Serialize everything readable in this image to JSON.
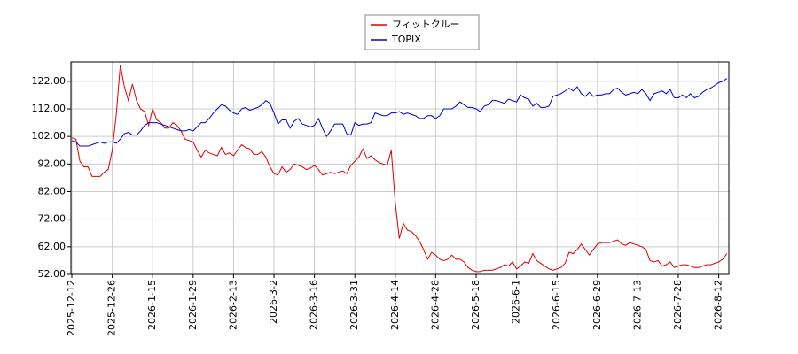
{
  "chart_data": {
    "type": "line",
    "categories": [
      "2025-12-12",
      null,
      null,
      null,
      null,
      null,
      null,
      null,
      null,
      null,
      "2025-12-26",
      null,
      null,
      null,
      null,
      null,
      null,
      null,
      null,
      null,
      "2026-1-15",
      null,
      null,
      null,
      null,
      null,
      null,
      null,
      null,
      null,
      "2026-1-29",
      null,
      null,
      null,
      null,
      null,
      null,
      null,
      null,
      null,
      "2026-2-13",
      null,
      null,
      null,
      null,
      null,
      null,
      null,
      null,
      null,
      "2026-3-2",
      null,
      null,
      null,
      null,
      null,
      null,
      null,
      null,
      null,
      "2026-3-16",
      null,
      null,
      null,
      null,
      null,
      null,
      null,
      null,
      null,
      "2026-3-31",
      null,
      null,
      null,
      null,
      null,
      null,
      null,
      null,
      null,
      "2026-4-14",
      null,
      null,
      null,
      null,
      null,
      null,
      null,
      null,
      null,
      "2026-4-28",
      null,
      null,
      null,
      null,
      null,
      null,
      null,
      null,
      null,
      "2026-5-18",
      null,
      null,
      null,
      null,
      null,
      null,
      null,
      null,
      null,
      "2026-6-1",
      null,
      null,
      null,
      null,
      null,
      null,
      null,
      null,
      null,
      "2026-6-15",
      null,
      null,
      null,
      null,
      null,
      null,
      null,
      null,
      null,
      "2026-6-29",
      null,
      null,
      null,
      null,
      null,
      null,
      null,
      null,
      null,
      "2026-7-13",
      null,
      null,
      null,
      null,
      null,
      null,
      null,
      null,
      null,
      "2026-7-28",
      null,
      null,
      null,
      null,
      null,
      null,
      null,
      null,
      null,
      "2026-8-12",
      null,
      null
    ],
    "series": [
      {
        "name": "フィットクルー",
        "color": "#dd0000",
        "values": [
          101.5,
          101,
          93,
          91,
          91,
          87.5,
          87.5,
          87.5,
          89,
          90,
          97,
          110,
          128,
          120,
          115,
          121,
          115,
          112,
          111,
          106,
          112,
          108,
          107,
          105,
          105,
          107,
          106,
          104,
          101,
          100.5,
          100,
          97,
          94.5,
          97,
          96,
          95.5,
          95,
          98,
          95.5,
          96,
          95,
          97,
          99,
          98,
          97.5,
          95.5,
          95.5,
          96.5,
          94.5,
          91,
          88.5,
          88,
          91,
          89,
          90,
          92,
          91.5,
          91,
          90,
          90.5,
          91.5,
          90,
          88,
          88.5,
          89,
          88.5,
          89,
          89.5,
          88.5,
          91.5,
          93,
          94.5,
          97.5,
          94,
          95,
          93.5,
          92.5,
          92,
          91.5,
          97,
          78,
          65,
          70.5,
          68,
          67.5,
          66,
          64,
          61,
          57.5,
          60,
          59,
          57.5,
          57,
          57.5,
          59,
          57.5,
          57.5,
          56.5,
          54.5,
          53.5,
          53,
          53,
          53.5,
          53.5,
          53.5,
          54,
          54.5,
          55.5,
          55,
          56.5,
          54,
          55,
          56.5,
          56,
          59.5,
          57,
          56,
          55,
          54,
          53.5,
          54,
          54.5,
          56,
          60,
          59.5,
          61,
          63,
          61,
          59,
          61,
          63,
          63.5,
          63.5,
          63.5,
          64,
          64.5,
          63,
          62.5,
          63.5,
          63,
          62.5,
          62,
          61,
          57,
          56.5,
          57,
          55,
          55.5,
          56.5,
          54.5,
          55,
          55.5,
          55.5,
          55,
          54.5,
          54.5,
          55,
          55.5,
          55.5,
          56,
          56.5,
          57.5,
          59.5
        ]
      },
      {
        "name": "TOPIX",
        "color": "#0000cc",
        "values": [
          100.5,
          100,
          98.5,
          98.5,
          98.5,
          99,
          99.5,
          100,
          99.5,
          100,
          100,
          99.5,
          101,
          103,
          103.5,
          102.5,
          102.5,
          104,
          106,
          107,
          107,
          107,
          106.5,
          106,
          105.5,
          105,
          104.5,
          104,
          104,
          104.5,
          104,
          105.5,
          107,
          107,
          108.5,
          110.5,
          112,
          113.5,
          113,
          111.5,
          110.5,
          110,
          112,
          112.5,
          111.5,
          112,
          112.5,
          113.5,
          115,
          114,
          110.5,
          106.5,
          108,
          108,
          105,
          107.5,
          108.5,
          106.5,
          106,
          105.5,
          106,
          108.5,
          105,
          102,
          104,
          106.5,
          106.5,
          106.5,
          103,
          102.5,
          107,
          106,
          106.5,
          106.5,
          107,
          110.5,
          110,
          109.5,
          109.5,
          110.5,
          110.5,
          111,
          110,
          110.5,
          110,
          109.5,
          108.5,
          108.5,
          109.5,
          109.5,
          108.5,
          109.5,
          112,
          112,
          112,
          113,
          114.5,
          113.5,
          112.5,
          112.5,
          112,
          111,
          113,
          113.5,
          115,
          115,
          114.5,
          114,
          115.5,
          115,
          114.5,
          117,
          116,
          115.5,
          113,
          114,
          112.5,
          112.5,
          113,
          116.5,
          117,
          117.5,
          118.5,
          119.5,
          118.5,
          120,
          117.5,
          116.5,
          118,
          116.5,
          117,
          117,
          117.5,
          117.5,
          119,
          119.5,
          118,
          117,
          117.5,
          118,
          117.5,
          119,
          117.5,
          115,
          117.5,
          118,
          118.5,
          117.5,
          119,
          116,
          116,
          117,
          116,
          117.5,
          116,
          116.5,
          118,
          119,
          119.5,
          120.5,
          121.5,
          122,
          123
        ]
      }
    ],
    "ylim": [
      52,
      129
    ],
    "yticks": [
      {
        "value": 52,
        "label": "52.00"
      },
      {
        "value": 62,
        "label": "62.00"
      },
      {
        "value": 72,
        "label": "72.00"
      },
      {
        "value": 82,
        "label": "82.00"
      },
      {
        "value": 92,
        "label": "92.00"
      },
      {
        "value": 102,
        "label": "102.00"
      },
      {
        "value": 112,
        "label": "112.00"
      },
      {
        "value": 122,
        "label": "122.00"
      }
    ],
    "grid": true,
    "legend": "top"
  }
}
